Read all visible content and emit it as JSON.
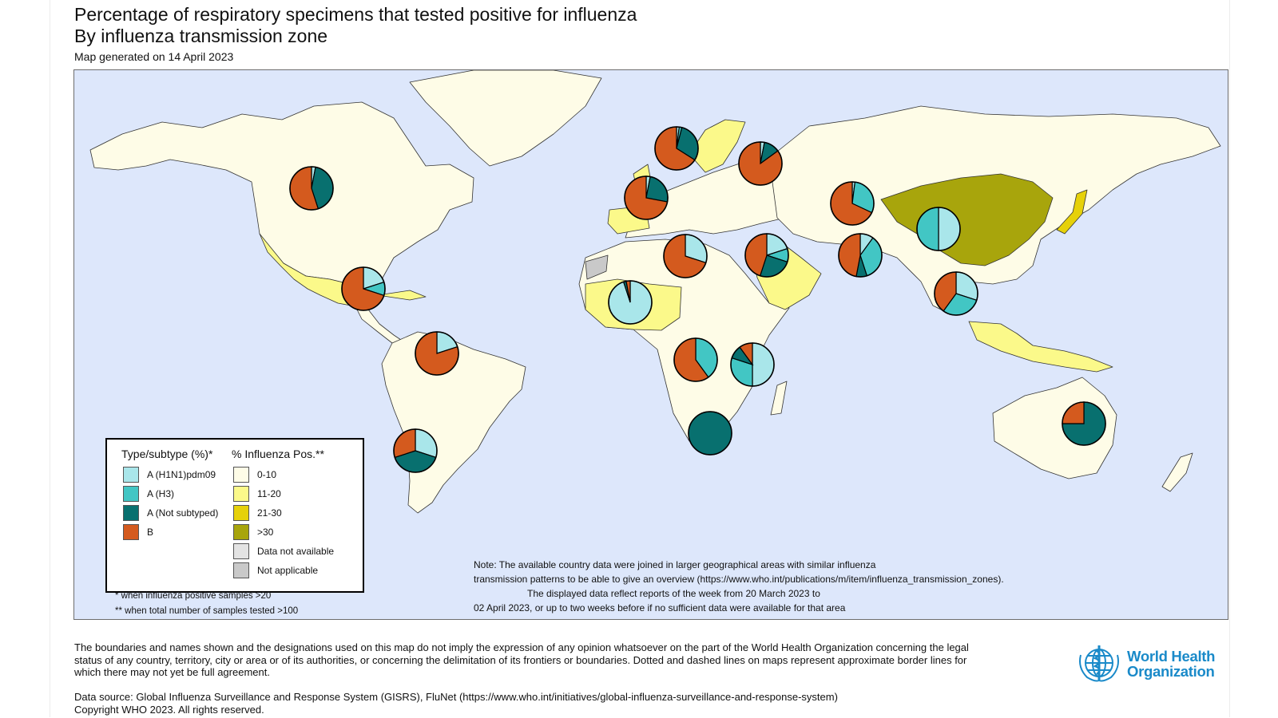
{
  "header": {
    "title": "Percentage of respiratory specimens that tested positive for influenza",
    "subtitle": "By influenza transmission zone",
    "generated": "Map generated on 14 April 2023"
  },
  "colors": {
    "h1n1": "#a9e6ea",
    "h3": "#42c6c4",
    "a_not_subtyped": "#08706f",
    "b": "#d45a1e",
    "pos_0_10": "#fefce7",
    "pos_11_20": "#fbf98a",
    "pos_21_30": "#e6d10a",
    "pos_30_plus": "#a8a50c",
    "data_not_available": "#e3e3e3",
    "not_applicable": "#c9c9c9",
    "ocean": "#dde7fb"
  },
  "legend": {
    "type_heading": "Type/subtype (%)*",
    "type_items": [
      {
        "label": "A (H1N1)pdm09",
        "color_key": "h1n1"
      },
      {
        "label": "A (H3)",
        "color_key": "h3"
      },
      {
        "label": "A (Not subtyped)",
        "color_key": "a_not_subtyped"
      },
      {
        "label": "B",
        "color_key": "b"
      }
    ],
    "pos_heading": "% Influenza Pos.**",
    "pos_items": [
      {
        "label": "0-10",
        "color_key": "pos_0_10"
      },
      {
        "label": "11-20",
        "color_key": "pos_11_20"
      },
      {
        "label": "21-30",
        "color_key": "pos_21_30"
      },
      {
        "label": ">30",
        "color_key": "pos_30_plus"
      },
      {
        "label": "Data not available",
        "color_key": "data_not_available"
      },
      {
        "label": "Not applicable",
        "color_key": "not_applicable"
      }
    ],
    "footnote1": "* when influenza positive samples >20",
    "footnote2": "** when total number of samples tested >100"
  },
  "note": {
    "line1": "Note: The available country data were joined in larger geographical areas with similar influenza",
    "line2": "transmission patterns to be able to give an overview (https://www.who.int/publications/m/item/influenza_transmission_zones).",
    "line3": "The displayed data reflect reports of the week from 20 March 2023 to",
    "line4": "02 April 2023, or up to two weeks before if no sufficient data were available for that area"
  },
  "footer": {
    "disclaimer": "The boundaries and names shown and the designations used on this map do not imply the expression of any opinion whatsoever on the part of the World Health Organization concerning the legal status of any country, territory, city or area or of its authorities, or concerning the delimitation of its frontiers or boundaries. Dotted and dashed lines on maps represent approximate border lines for which there may not yet be full agreement.",
    "source_line1": "Data source: Global Influenza Surveillance and Response System (GISRS), FluNet (https://www.who.int/initiatives/global-influenza-surveillance-and-response-system)",
    "source_line2": "Copyright WHO 2023. All rights reserved.",
    "logo_line1": "World Health",
    "logo_line2": "Organization"
  },
  "zones": [
    {
      "zone": "North America",
      "h1n1": 3,
      "h3": 0,
      "a_not_subtyped": 42,
      "b": 55
    },
    {
      "zone": "Northern Europe",
      "h1n1": 2,
      "h3": 2,
      "a_not_subtyped": 30,
      "b": 66
    },
    {
      "zone": "Eastern Europe",
      "h1n1": 3,
      "h3": 0,
      "a_not_subtyped": 12,
      "b": 85
    },
    {
      "zone": "South West Europe",
      "h1n1": 3,
      "h3": 0,
      "a_not_subtyped": 25,
      "b": 72
    },
    {
      "zone": "Central Asia",
      "h1n1": 2,
      "h3": 30,
      "a_not_subtyped": 0,
      "b": 68
    },
    {
      "zone": "Eastern Asia",
      "h1n1": 50,
      "h3": 50,
      "a_not_subtyped": 0,
      "b": 0
    },
    {
      "zone": "Central America and Caribbean",
      "h1n1": 20,
      "h3": 10,
      "a_not_subtyped": 0,
      "b": 70
    },
    {
      "zone": "Northern Africa",
      "h1n1": 30,
      "h3": 0,
      "a_not_subtyped": 0,
      "b": 70
    },
    {
      "zone": "Western Asia",
      "h1n1": 20,
      "h3": 10,
      "a_not_subtyped": 25,
      "b": 45
    },
    {
      "zone": "Southern Asia",
      "h1n1": 10,
      "h3": 35,
      "a_not_subtyped": 8,
      "b": 47
    },
    {
      "zone": "Western Africa",
      "h1n1": 95,
      "h3": 0,
      "a_not_subtyped": 2,
      "b": 3
    },
    {
      "zone": "South East Asia",
      "h1n1": 30,
      "h3": 30,
      "a_not_subtyped": 0,
      "b": 40
    },
    {
      "zone": "Tropical South America",
      "h1n1": 20,
      "h3": 0,
      "a_not_subtyped": 0,
      "b": 80
    },
    {
      "zone": "Middle Africa",
      "h1n1": 0,
      "h3": 40,
      "a_not_subtyped": 0,
      "b": 60
    },
    {
      "zone": "Eastern Africa",
      "h1n1": 50,
      "h3": 30,
      "a_not_subtyped": 10,
      "b": 10
    },
    {
      "zone": "Temperate South America",
      "h1n1": 30,
      "h3": 0,
      "a_not_subtyped": 40,
      "b": 30
    },
    {
      "zone": "Southern Africa",
      "h1n1": 0,
      "h3": 0,
      "a_not_subtyped": 100,
      "b": 0
    },
    {
      "zone": "Oceania Melanesia Polynesia",
      "h1n1": 0,
      "h3": 0,
      "a_not_subtyped": 75,
      "b": 25
    }
  ]
}
